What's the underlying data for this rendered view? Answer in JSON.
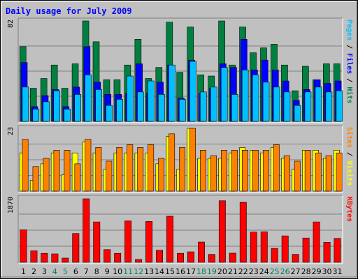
{
  "chart_data": {
    "type": "bar",
    "title": "Daily usage for July 2009",
    "categories": [
      "1",
      "2",
      "3",
      "4",
      "5",
      "6",
      "7",
      "8",
      "9",
      "10",
      "11",
      "12",
      "13",
      "14",
      "15",
      "16",
      "17",
      "18",
      "19",
      "20",
      "21",
      "22",
      "23",
      "24",
      "25",
      "26",
      "27",
      "28",
      "29",
      "30",
      "31"
    ],
    "weekend_days": [
      "4",
      "5",
      "11",
      "12",
      "18",
      "19",
      "25",
      "26"
    ],
    "colors": {
      "hits": "#008040",
      "files": "#0000ff",
      "pages": "#00c0ff",
      "visits": "#ffff00",
      "sites": "#ff8000",
      "kbytes": "#ff0000",
      "title": "#0000ff",
      "weekend_label": "#00805c",
      "weekday_label": "#000000",
      "panel_background": "#c0c0c0",
      "grid": "#808080"
    },
    "panels": [
      {
        "id": "hits-files-pages",
        "ymax_label": "82",
        "ylim": [
          0,
          82
        ],
        "right_labels": [
          {
            "text": "Pages",
            "color": "#00c0ff"
          },
          {
            "text": " / ",
            "color": "#000000"
          },
          {
            "text": "Files",
            "color": "#0000ff"
          },
          {
            "text": " / ",
            "color": "#000000"
          },
          {
            "text": "Hits",
            "color": "#008040"
          }
        ],
        "series": [
          {
            "name": "Hits",
            "color": "#008040",
            "values": [
              61,
              27,
              35,
              46,
              27,
              47,
              82,
              65,
              34,
              34,
              46,
              67,
              35,
              44,
              81,
              40,
              77,
              38,
              37,
              82,
              46,
              77,
              56,
              60,
              63,
              46,
              25,
              45,
              34,
              47,
              47
            ]
          },
          {
            "name": "Files",
            "color": "#0000ff",
            "values": [
              48,
              12,
              21,
              26,
              12,
              28,
              61,
              32,
              22,
              22,
              23,
              47,
              23,
              32,
              46,
              19,
              50,
              23,
              27,
              47,
              44,
              67,
              42,
              50,
              42,
              33,
              17,
              26,
              34,
              31,
              33
            ]
          },
          {
            "name": "Pages",
            "color": "#00c0ff",
            "values": [
              28,
              10,
              16,
              25,
              10,
              22,
              38,
              26,
              13,
              18,
              37,
              24,
              33,
              22,
              46,
              18,
              49,
              24,
              28,
              44,
              22,
              42,
              38,
              32,
              28,
              24,
              13,
              24,
              28,
              24,
              25
            ]
          }
        ]
      },
      {
        "id": "sites-visits",
        "ymax_label": "23",
        "ylim": [
          0,
          23
        ],
        "right_labels": [
          {
            "text": "Sites",
            "color": "#ff8000"
          },
          {
            "text": " / ",
            "color": "#000000"
          },
          {
            "text": "Visits",
            "color": "#ffff00"
          }
        ],
        "series": [
          {
            "name": "Visits",
            "color": "#ffff00",
            "values": [
              14,
              4,
              10,
              14,
              6,
              14,
              18,
              14,
              8,
              14,
              14,
              14,
              14,
              10,
              20,
              8,
              23,
              12,
              12,
              12,
              14,
              16,
              15,
              14,
              16,
              12,
              8,
              15,
              15,
              12,
              15
            ]
          },
          {
            "name": "Sites",
            "color": "#ff8000",
            "values": [
              19,
              9,
              12,
              15,
              15,
              10,
              19,
              16,
              11,
              16,
              17,
              16,
              17,
              12,
              21,
              16,
              23,
              15,
              13,
              15,
              15,
              15,
              15,
              15,
              17,
              13,
              11,
              15,
              14,
              13,
              14
            ]
          }
        ]
      },
      {
        "id": "kbytes",
        "ymax_label": "1870",
        "ylim": [
          0,
          1870
        ],
        "right_labels": [
          {
            "text": "KBytes",
            "color": "#ff0000"
          }
        ],
        "series": [
          {
            "name": "KBytes",
            "color": "#ff0000",
            "values": [
              945,
              331,
              260,
              244,
              122,
              838,
              1850,
              1176,
              370,
              260,
              1204,
              82,
              1190,
              350,
              1342,
              260,
              304,
              589,
              230,
              1793,
              265,
              1747,
              879,
              889,
              405,
              769,
              230,
              707,
              1176,
              582,
              696
            ]
          }
        ]
      }
    ]
  }
}
